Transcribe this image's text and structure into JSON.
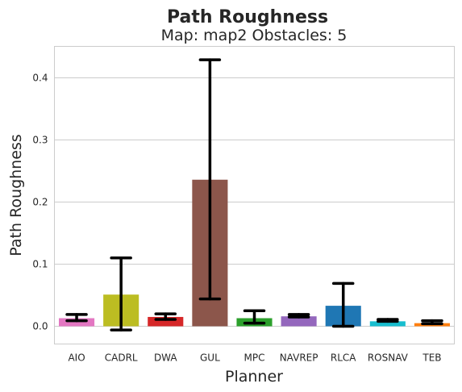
{
  "chart_data": {
    "type": "bar",
    "suptitle": "Path Roughness",
    "title": "Map: map2 Obstacles: 5",
    "xlabel": "Planner",
    "ylabel": "Path Roughness",
    "ylim": [
      -0.03,
      0.452
    ],
    "yticks": [
      0.0,
      0.1,
      0.2,
      0.3,
      0.4
    ],
    "ytick_labels": [
      "0.0",
      "0.1",
      "0.2",
      "0.3",
      "0.4"
    ],
    "grid": true,
    "categories": [
      "AIO",
      "CADRL",
      "DWA",
      "GUL",
      "MPC",
      "NAVREP",
      "RLCA",
      "ROSNAV",
      "TEB"
    ],
    "values": [
      0.013,
      0.051,
      0.015,
      0.236,
      0.013,
      0.016,
      0.033,
      0.008,
      0.005
    ],
    "error_low": [
      0.009,
      -0.006,
      0.011,
      0.044,
      0.005,
      0.015,
      0.0,
      0.008,
      0.004
    ],
    "error_high": [
      0.019,
      0.11,
      0.02,
      0.429,
      0.025,
      0.019,
      0.069,
      0.011,
      0.009
    ],
    "colors": [
      "#e377c2",
      "#bcbd22",
      "#d62728",
      "#8c564b",
      "#2ca02c",
      "#9467bd",
      "#1f77b4",
      "#17becf",
      "#ff7f0e"
    ]
  }
}
